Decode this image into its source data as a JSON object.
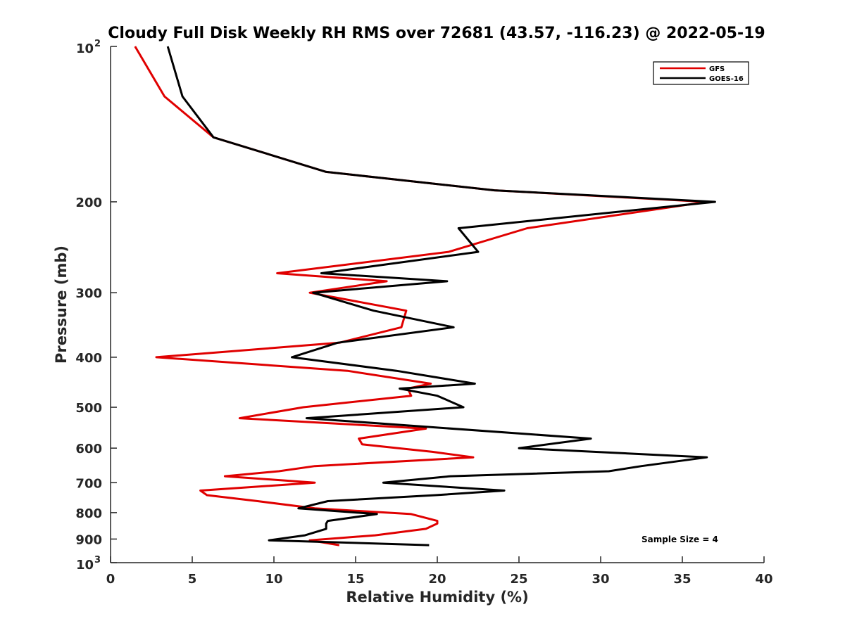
{
  "chart_data": {
    "type": "line",
    "title": "Cloudy Full Disk Weekly RH RMS over 72681 (43.57, -116.23) @ 2022-05-19",
    "xlabel": "Relative Humidity (%)",
    "ylabel": "Pressure (mb)",
    "xlim": [
      0,
      40
    ],
    "ylim": [
      100,
      1000
    ],
    "y_scale": "log",
    "y_reversed": true,
    "x_ticks": [
      "0",
      "5",
      "10",
      "15",
      "20",
      "25",
      "30",
      "35",
      "40"
    ],
    "y_ticks": [
      {
        "value": 100,
        "label": "10",
        "sup": "2"
      },
      {
        "value": 200,
        "label": "200",
        "sup": ""
      },
      {
        "value": 300,
        "label": "300",
        "sup": ""
      },
      {
        "value": 400,
        "label": "400",
        "sup": ""
      },
      {
        "value": 500,
        "label": "500",
        "sup": ""
      },
      {
        "value": 600,
        "label": "600",
        "sup": ""
      },
      {
        "value": 700,
        "label": "700",
        "sup": ""
      },
      {
        "value": 800,
        "label": "800",
        "sup": ""
      },
      {
        "value": 900,
        "label": "900",
        "sup": ""
      },
      {
        "value": 1000,
        "label": "10",
        "sup": "3"
      }
    ],
    "legend_position": "top-right",
    "grid": false,
    "annotation": "Sample Size = 4",
    "series": [
      {
        "name": "GFS",
        "color": "#e00000",
        "points": [
          [
            1.5,
            100
          ],
          [
            3.3,
            125
          ],
          [
            6.3,
            150
          ],
          [
            13.2,
            175
          ],
          [
            23.5,
            190
          ],
          [
            36.5,
            200
          ],
          [
            25.5,
            225
          ],
          [
            20.7,
            250
          ],
          [
            10.2,
            275
          ],
          [
            16.9,
            285
          ],
          [
            12.2,
            300
          ],
          [
            18.1,
            325
          ],
          [
            17.8,
            350
          ],
          [
            14.0,
            375
          ],
          [
            2.8,
            400
          ],
          [
            14.5,
            425
          ],
          [
            19.6,
            450
          ],
          [
            18.2,
            460
          ],
          [
            18.4,
            475
          ],
          [
            11.8,
            500
          ],
          [
            7.9,
            525
          ],
          [
            19.3,
            550
          ],
          [
            15.2,
            575
          ],
          [
            15.4,
            590
          ],
          [
            19.7,
            610
          ],
          [
            22.2,
            625
          ],
          [
            12.5,
            650
          ],
          [
            10.3,
            665
          ],
          [
            7.0,
            680
          ],
          [
            12.5,
            700
          ],
          [
            5.5,
            725
          ],
          [
            5.9,
            740
          ],
          [
            9.0,
            760
          ],
          [
            12.5,
            785
          ],
          [
            18.4,
            805
          ],
          [
            20.0,
            830
          ],
          [
            20.0,
            840
          ],
          [
            19.3,
            860
          ],
          [
            16.2,
            885
          ],
          [
            12.2,
            905
          ],
          [
            14.0,
            925
          ]
        ]
      },
      {
        "name": "GOES-16",
        "color": "#000000",
        "points": [
          [
            3.5,
            100
          ],
          [
            4.4,
            125
          ],
          [
            6.3,
            150
          ],
          [
            13.2,
            175
          ],
          [
            23.5,
            190
          ],
          [
            37.0,
            200
          ],
          [
            21.3,
            225
          ],
          [
            22.5,
            250
          ],
          [
            12.9,
            275
          ],
          [
            20.6,
            285
          ],
          [
            12.4,
            300
          ],
          [
            16.1,
            325
          ],
          [
            21.0,
            350
          ],
          [
            13.9,
            375
          ],
          [
            11.1,
            400
          ],
          [
            17.5,
            425
          ],
          [
            22.3,
            450
          ],
          [
            17.7,
            460
          ],
          [
            20.0,
            475
          ],
          [
            21.6,
            500
          ],
          [
            12.0,
            525
          ],
          [
            29.4,
            575
          ],
          [
            25.0,
            600
          ],
          [
            36.5,
            625
          ],
          [
            32.5,
            650
          ],
          [
            30.5,
            665
          ],
          [
            20.8,
            680
          ],
          [
            16.7,
            700
          ],
          [
            24.1,
            725
          ],
          [
            19.9,
            740
          ],
          [
            13.3,
            760
          ],
          [
            11.5,
            785
          ],
          [
            16.3,
            805
          ],
          [
            13.3,
            830
          ],
          [
            13.2,
            840
          ],
          [
            13.2,
            860
          ],
          [
            11.9,
            885
          ],
          [
            9.7,
            905
          ],
          [
            19.5,
            925
          ]
        ]
      }
    ]
  }
}
